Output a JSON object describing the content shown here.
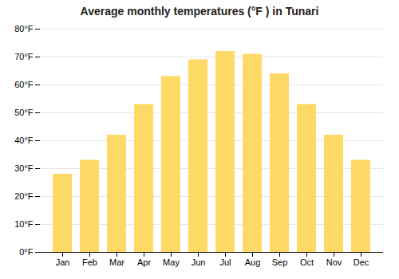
{
  "chart_data": {
    "type": "bar",
    "title": "Average monthly temperatures (°F ) in Tunari",
    "categories": [
      "Jan",
      "Feb",
      "Mar",
      "Apr",
      "May",
      "Jun",
      "Jul",
      "Aug",
      "Sep",
      "Oct",
      "Nov",
      "Dec"
    ],
    "values": [
      28,
      33,
      42,
      53,
      63,
      69,
      72,
      71,
      64,
      53,
      42,
      33
    ],
    "color": "#FFD966",
    "ylim": [
      0,
      80
    ],
    "yticks": [
      {
        "value": 0,
        "label": "0°F"
      },
      {
        "value": 10,
        "label": "10°F"
      },
      {
        "value": 20,
        "label": "20°F"
      },
      {
        "value": 30,
        "label": "30°F"
      },
      {
        "value": 40,
        "label": "40°F"
      },
      {
        "value": 50,
        "label": "50°F"
      },
      {
        "value": 60,
        "label": "60°F"
      },
      {
        "value": 70,
        "label": "70°F"
      },
      {
        "value": 80,
        "label": "80°F"
      }
    ],
    "grid": true
  }
}
